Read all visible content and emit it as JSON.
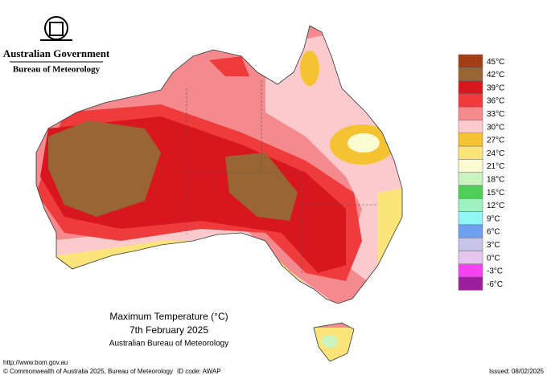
{
  "header": {
    "government": "Australian Government",
    "agency": "Bureau of Meteorology"
  },
  "map": {
    "title": "Maximum Temperature (°C)",
    "date": "7th February 2025",
    "source": "Australian Bureau of Meteorology"
  },
  "legend": [
    {
      "label": "45°C",
      "color": "#a33d16"
    },
    {
      "label": "42°C",
      "color": "#9a6535"
    },
    {
      "label": "39°C",
      "color": "#d7161d"
    },
    {
      "label": "36°C",
      "color": "#ef3b3c"
    },
    {
      "label": "33°C",
      "color": "#f58a8e"
    },
    {
      "label": "30°C",
      "color": "#fbcacd"
    },
    {
      "label": "27°C",
      "color": "#f5c332"
    },
    {
      "label": "24°C",
      "color": "#fbe57a"
    },
    {
      "label": "21°C",
      "color": "#fbfbd2"
    },
    {
      "label": "18°C",
      "color": "#c9f3bf"
    },
    {
      "label": "15°C",
      "color": "#4fcf58"
    },
    {
      "label": "12°C",
      "color": "#9ff2c0"
    },
    {
      "label": "9°C",
      "color": "#8ff5f5"
    },
    {
      "label": "6°C",
      "color": "#6fa0ef"
    },
    {
      "label": "3°C",
      "color": "#c7c4ea"
    },
    {
      "label": "0°C",
      "color": "#e6c6ee"
    },
    {
      "label": "-3°C",
      "color": "#f542f2"
    },
    {
      "label": "-6°C",
      "color": "#9b1f9b"
    }
  ],
  "footer": {
    "url": "http://www.bom.gov.au",
    "copyright": "© Commonwealth of Australia 2025, Bureau of Meteorology",
    "id_code": "ID code: AWAP",
    "issued": "Issued: 08/02/2025"
  }
}
